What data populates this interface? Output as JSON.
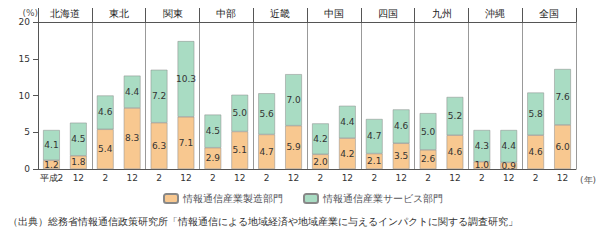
{
  "chart_data": {
    "type": "bar",
    "stacked": true,
    "categories": [
      "平成2",
      "12",
      "2",
      "12",
      "2",
      "12",
      "2",
      "12",
      "2",
      "12",
      "2",
      "12",
      "2",
      "12",
      "2",
      "12",
      "2",
      "12",
      "2",
      "12"
    ],
    "groups": [
      "北海道",
      "東北",
      "関東",
      "中部",
      "近畿",
      "中国",
      "四国",
      "九州",
      "沖縄",
      "全国"
    ],
    "series": [
      {
        "name": "情報通信産業製造部門",
        "color": "#f8c890",
        "values": [
          1.2,
          1.8,
          5.4,
          8.3,
          6.3,
          7.1,
          2.9,
          5.1,
          4.7,
          5.9,
          2.0,
          4.2,
          2.1,
          3.5,
          2.6,
          4.6,
          1.0,
          0.9,
          4.6,
          6.0
        ],
        "value_labels": [
          "1.2",
          "1.8",
          "5.4",
          "8.3",
          "6.3",
          "7.1",
          "2.9",
          "5.1",
          "4.7",
          "5.9",
          "2.0",
          "4.2",
          "2.1",
          "3.5",
          "2.6",
          "4.6",
          "1.0",
          "0.9",
          "4.6",
          "6.0"
        ]
      },
      {
        "name": "情報通信産業サービス部門",
        "color": "#a9dcc3",
        "values": [
          4.1,
          4.5,
          4.6,
          4.4,
          7.2,
          10.3,
          4.5,
          5.0,
          5.6,
          7.0,
          4.2,
          4.4,
          4.7,
          4.6,
          5.0,
          5.2,
          4.3,
          4.4,
          5.8,
          7.6
        ],
        "value_labels": [
          "4.1",
          "4.5",
          "4.6",
          "4.4",
          "7.2",
          "10.3",
          "4.5",
          "5.0",
          "5.6",
          "7.0",
          "4.2",
          "4.4",
          "4.7",
          "4.6",
          "5.0",
          "5.2",
          "4.3",
          "4.4",
          "5.8",
          "7.6"
        ]
      }
    ],
    "ylim": [
      0,
      20
    ],
    "yticks": [
      0,
      5,
      10,
      15,
      20
    ],
    "y_unit": "(%)",
    "x_unit": "(年)",
    "data_labels": true,
    "grid": false,
    "legend": "bottom",
    "source": "（出典）総務省情報通信政策研究所「情報通信による地域経済や地域産業に与えるインパクトに関する調査研究」"
  }
}
